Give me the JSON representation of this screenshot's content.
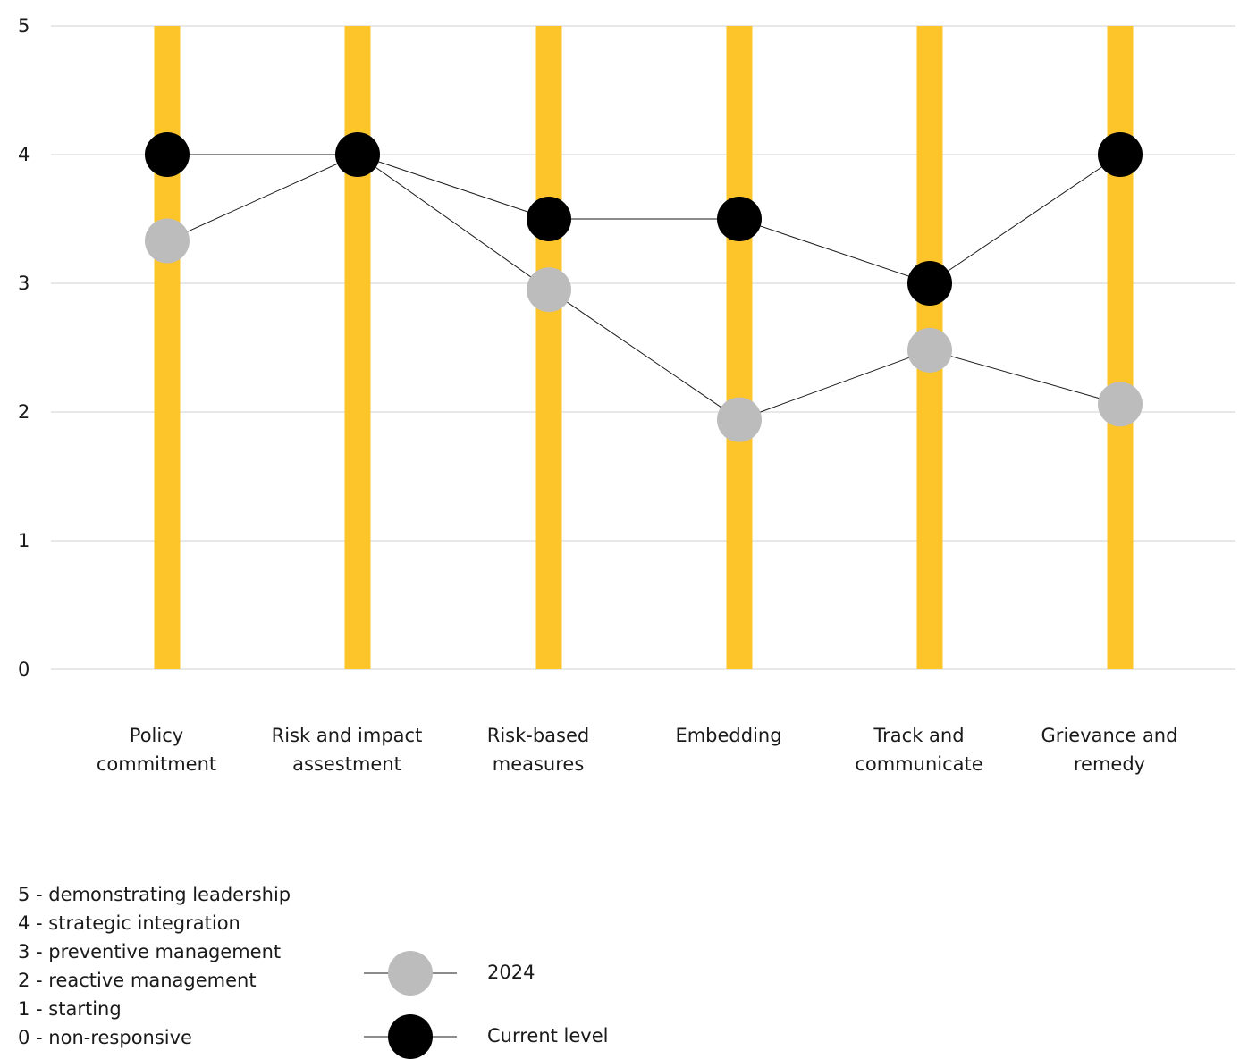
{
  "chart_data": {
    "type": "line",
    "categories": [
      [
        "Policy",
        "commitment"
      ],
      [
        "Risk and impact",
        "assestment"
      ],
      [
        "Risk-based",
        "measures"
      ],
      [
        "Embedding"
      ],
      [
        "Track and",
        "communicate"
      ],
      [
        "Grievance and",
        "remedy"
      ]
    ],
    "series": [
      {
        "name": "2024",
        "values": [
          3.33,
          4.0,
          2.95,
          1.94,
          2.48,
          2.06
        ],
        "color": "#bcbcbc"
      },
      {
        "name": "Current level",
        "values": [
          4.0,
          4.0,
          3.5,
          3.5,
          3.0,
          4.0
        ],
        "color": "#000000"
      }
    ],
    "ylim": [
      0,
      5
    ],
    "yticks": [
      "0",
      "1",
      "2",
      "3",
      "4",
      "5"
    ],
    "grid": true,
    "bar_color": "#fdc52a",
    "gridline_color": "#d0d0d0",
    "legend_position": "bottom-left"
  },
  "scale_legend": [
    "5 - demonstrating leadership",
    "4 - strategic integration",
    "3 - preventive management",
    "2 - reactive management",
    "1 - starting",
    "0 - non-responsive"
  ],
  "legend": [
    {
      "label": "2024",
      "color": "#bcbcbc"
    },
    {
      "label": "Current level",
      "color": "#000000"
    }
  ]
}
